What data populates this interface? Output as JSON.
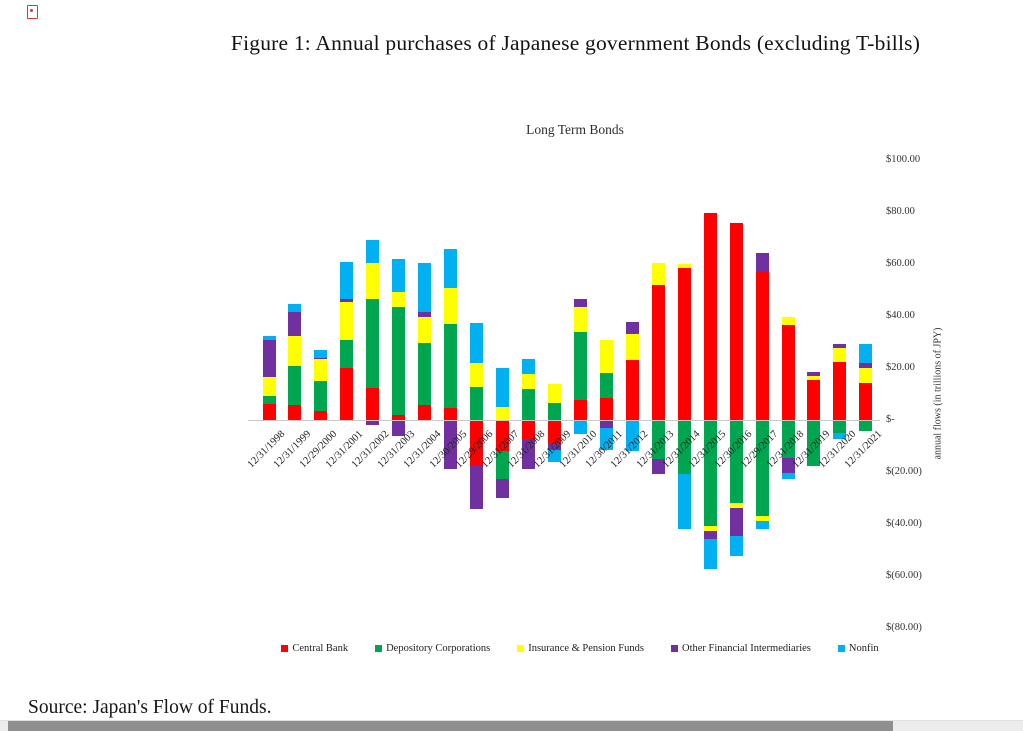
{
  "page": {
    "figure_title": "Figure 1: Annual purchases of Japanese government Bonds (excluding T-bills)",
    "source_note": "Source: Japan's Flow of Funds."
  },
  "chart_data": {
    "type": "bar",
    "stacked": true,
    "title": "Long Term Bonds",
    "xlabel": "",
    "ylabel": "annual flows (in trillions of JPY)",
    "y_axis_side": "right",
    "grid": false,
    "legend_position": "bottom",
    "ylim": [
      -90,
      105
    ],
    "y_ticks": [
      {
        "label": "$100.00",
        "value": 100
      },
      {
        "label": "$80.00",
        "value": 80
      },
      {
        "label": "$60.00",
        "value": 60
      },
      {
        "label": "$40.00",
        "value": 40
      },
      {
        "label": "$20.00",
        "value": 20
      },
      {
        "label": "$-",
        "value": 0
      },
      {
        "label": "$(20.00)",
        "value": -20
      },
      {
        "label": "$(40.00)",
        "value": -40
      },
      {
        "label": "$(60.00)",
        "value": -60
      },
      {
        "label": "$(80.00)",
        "value": -80
      }
    ],
    "categories": [
      "12/31/1998",
      "12/31/1999",
      "12/29/2000",
      "12/31/2001",
      "12/31/2002",
      "12/31/2003",
      "12/31/2004",
      "12/30/2005",
      "12/29/2006",
      "12/31/2007",
      "12/31/2008",
      "12/31/2009",
      "12/31/2010",
      "12/30/2011",
      "12/31/2012",
      "12/31/2013",
      "12/31/2014",
      "12/31/2015",
      "12/30/2016",
      "12/29/2017",
      "12/31/2018",
      "12/31/2019",
      "12/31/2020",
      "12/31/2021"
    ],
    "series": [
      {
        "name": "Central Bank",
        "color": "#FF0000",
        "values": [
          6.2,
          5.8,
          3.5,
          20.0,
          12.2,
          1.9,
          5.8,
          4.5,
          -17.3,
          -11.5,
          -7.1,
          -8.3,
          7.7,
          8.3,
          23.1,
          51.9,
          58.6,
          79.5,
          75.6,
          57.1,
          36.5,
          15.4,
          22.4,
          14.1
        ]
      },
      {
        "name": "Depository Corporations",
        "color": "#00A550",
        "values": [
          3.0,
          15.0,
          11.6,
          10.8,
          34.3,
          41.4,
          23.7,
          32.4,
          12.6,
          -10.9,
          11.8,
          6.7,
          26.3,
          9.9,
          0,
          -14.7,
          -20.5,
          -40.4,
          -31.4,
          -36.5,
          -14.1,
          -17.3,
          -4.5,
          -3.8
        ]
      },
      {
        "name": "Insurance & Pension Funds",
        "color": "#FFFF00",
        "values": [
          7.3,
          11.5,
          8.4,
          14.7,
          13.9,
          6.0,
          10.0,
          13.7,
          9.2,
          5.1,
          5.9,
          7.1,
          9.6,
          12.6,
          10.0,
          8.6,
          1.4,
          -1.9,
          -1.9,
          -1.9,
          3.2,
          1.5,
          5.2,
          5.8
        ]
      },
      {
        "name": "Other Financial Intermediaries",
        "color": "#7030A0",
        "values": [
          14.3,
          9.2,
          0.5,
          1.0,
          -1.5,
          -5.8,
          2.2,
          -18.6,
          -16.5,
          -7.1,
          -11.4,
          -2.7,
          2.8,
          -2.5,
          4.7,
          -5.8,
          0,
          -3.2,
          -10.9,
          7.0,
          -5.8,
          1.7,
          1.6,
          1.9
        ]
      },
      {
        "name": "Nonfin",
        "color": "#00B0F0",
        "values": [
          1.5,
          3.1,
          3.0,
          14.4,
          8.8,
          12.5,
          18.7,
          15.0,
          15.4,
          14.8,
          5.6,
          -4.6,
          -5.1,
          -8.7,
          -11.5,
          0,
          -21.2,
          -11.5,
          -7.7,
          -3.2,
          -2.6,
          0,
          -2.5,
          7.4
        ]
      }
    ]
  }
}
